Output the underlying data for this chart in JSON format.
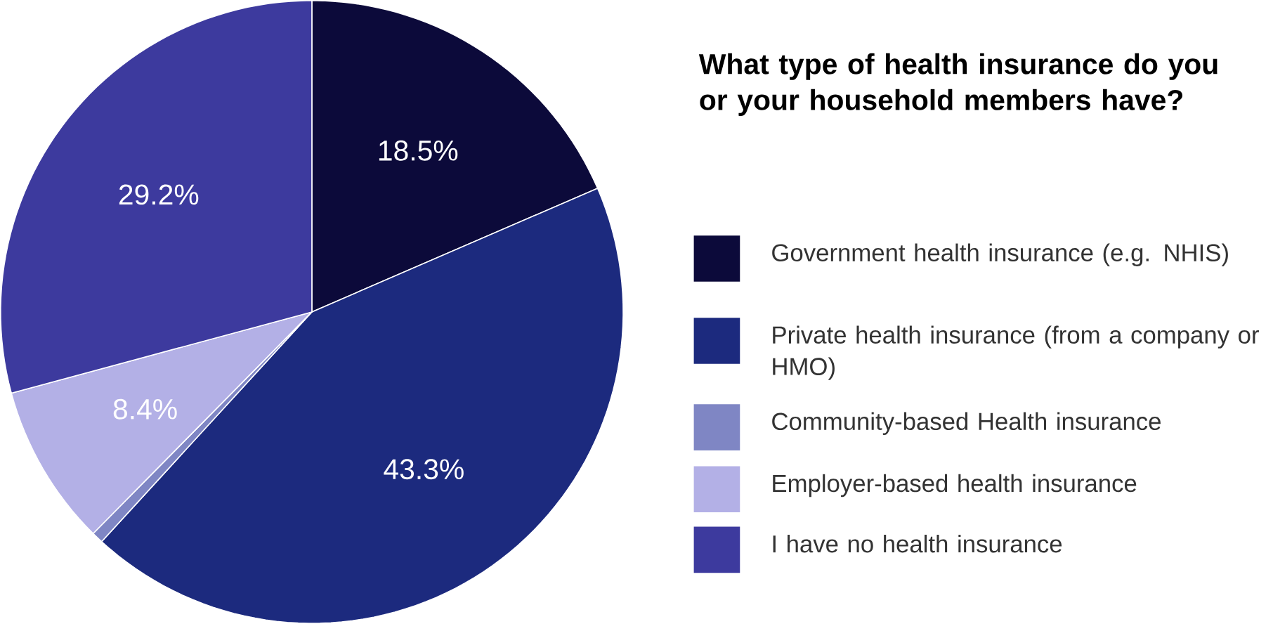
{
  "chart_data": {
    "type": "pie",
    "title": "What type of health insurance do you or your household members have?",
    "categories": [
      "Government health insurance (e.g. NHIS)",
      "Private health insurance (from a company or HMO)",
      "Community-based Health insurance",
      "Employer-based health insurance",
      "I have no health insurance"
    ],
    "values": [
      18.5,
      43.3,
      0.6,
      8.4,
      29.2
    ],
    "value_labels": [
      "18.5%",
      "43.3%",
      null,
      "8.4%",
      "29.2%"
    ],
    "colors": [
      "#0c0a3a",
      "#1c2a7e",
      "#7f86c4",
      "#b3b0e6",
      "#3d3a9e"
    ],
    "legend": "right"
  }
}
